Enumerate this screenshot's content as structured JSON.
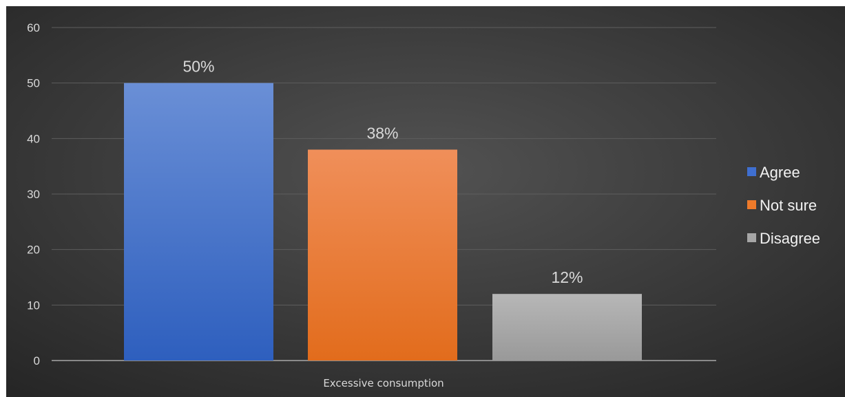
{
  "chart_data": {
    "type": "bar",
    "categories": [
      "Excessive consumption"
    ],
    "series": [
      {
        "name": "Agree",
        "values": [
          50
        ],
        "label": "50%",
        "color": "#3f6fd0"
      },
      {
        "name": "Not sure",
        "values": [
          38
        ],
        "label": "38%",
        "color": "#ee7a2a"
      },
      {
        "name": "Disagree",
        "values": [
          12
        ],
        "label": "12%",
        "color": "#a6a6a6"
      }
    ],
    "yticks": [
      "0",
      "10",
      "20",
      "30",
      "40",
      "50",
      "60"
    ],
    "ylim": [
      0,
      60
    ],
    "grid": true,
    "legend_position": "right",
    "background": "#3a3a3a"
  }
}
